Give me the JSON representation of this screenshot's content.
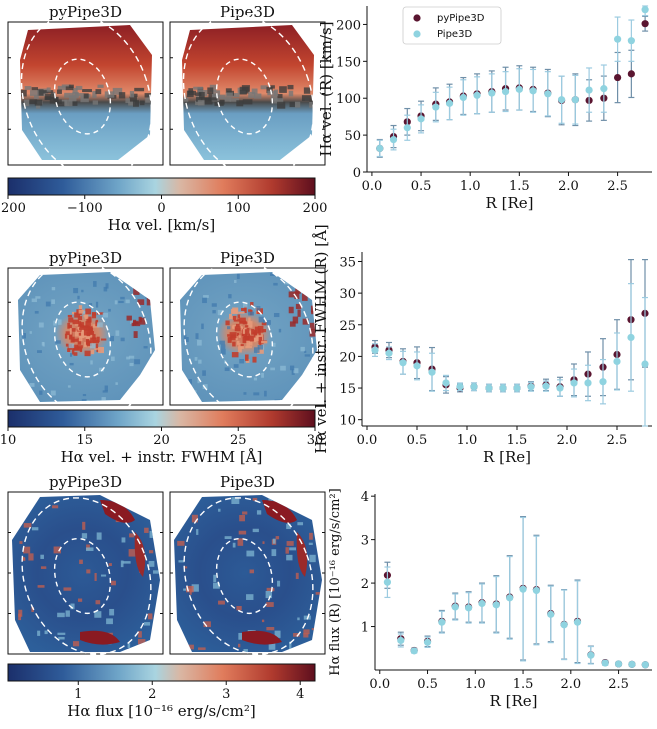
{
  "colors": {
    "pypipe3d": "#5a1530",
    "pipe3d": "#8fd3e0",
    "errbar": "#6f8fa8"
  },
  "legend": {
    "pypipe3d": "pyPipe3D",
    "pipe3d": "Pipe3D"
  },
  "rows": [
    {
      "map_titles": [
        "pyPipe3D",
        "Pipe3D"
      ],
      "map_kind": "velocity",
      "colorbar": {
        "ticks": [
          "−200",
          "−100",
          "0",
          "100",
          "200"
        ],
        "label": "Hα vel. [km/s]"
      }
    },
    {
      "map_titles": [
        "pyPipe3D",
        "Pipe3D"
      ],
      "map_kind": "fwhm",
      "colorbar": {
        "ticks": [
          "10",
          "15",
          "20",
          "25",
          "30"
        ],
        "label": "Hα vel. + instr. FWHM [Å]"
      }
    },
    {
      "map_titles": [
        "pyPipe3D",
        "Pipe3D"
      ],
      "map_kind": "flux",
      "colorbar": {
        "ticks": [
          "1",
          "2",
          "3",
          "4"
        ],
        "label": "Hα flux [10⁻¹⁶ erg/s/cm²]"
      }
    }
  ],
  "chart_data": [
    {
      "type": "scatter",
      "xlabel": "R [Re]",
      "ylabel": "Hα vel. (R) [km/s]",
      "xlim": [
        -0.05,
        2.85
      ],
      "ylim": [
        0,
        225
      ],
      "xticks": [
        "0.0",
        "0.5",
        "1.0",
        "1.5",
        "2.0",
        "2.5"
      ],
      "yticks": [
        "0",
        "50",
        "100",
        "150",
        "200"
      ],
      "x": [
        0.08,
        0.22,
        0.36,
        0.5,
        0.65,
        0.79,
        0.93,
        1.07,
        1.22,
        1.36,
        1.5,
        1.64,
        1.79,
        1.93,
        2.07,
        2.21,
        2.36,
        2.5,
        2.64,
        2.78
      ],
      "series": [
        {
          "name": "pyPipe3D",
          "values": [
            32,
            48,
            68,
            76,
            92,
            95,
            103,
            106,
            109,
            113,
            114,
            112,
            107,
            97,
            98,
            97,
            100,
            128,
            133,
            201
          ],
          "err": [
            12,
            15,
            18,
            20,
            22,
            24,
            25,
            27,
            28,
            29,
            30,
            30,
            32,
            33,
            35,
            28,
            30,
            34,
            32,
            10
          ]
        },
        {
          "name": "Pipe3D",
          "values": [
            32,
            44,
            60,
            72,
            88,
            93,
            101,
            104,
            107,
            109,
            112,
            110,
            106,
            98,
            98,
            111,
            113,
            180,
            178,
            220
          ],
          "err": [
            11,
            14,
            17,
            19,
            20,
            22,
            24,
            25,
            26,
            27,
            28,
            29,
            30,
            32,
            33,
            30,
            32,
            30,
            28,
            8
          ]
        }
      ]
    },
    {
      "type": "scatter",
      "xlabel": "R [Re]",
      "ylabel": "Hα vel. + instr. FWHM (R) [Å]",
      "xlim": [
        -0.05,
        2.85
      ],
      "ylim": [
        9,
        36.5
      ],
      "xticks": [
        "0.0",
        "0.5",
        "1.0",
        "1.5",
        "2.0",
        "2.5"
      ],
      "yticks": [
        "10",
        "15",
        "20",
        "25",
        "30",
        "35"
      ],
      "x": [
        0.08,
        0.22,
        0.36,
        0.5,
        0.65,
        0.79,
        0.93,
        1.07,
        1.22,
        1.36,
        1.5,
        1.64,
        1.79,
        1.93,
        2.07,
        2.21,
        2.36,
        2.5,
        2.64,
        2.78
      ],
      "series": [
        {
          "name": "pyPipe3D",
          "values": [
            21.5,
            21.0,
            19.2,
            19.0,
            18.0,
            15.5,
            15.0,
            15.2,
            15.0,
            15.0,
            15.0,
            15.3,
            15.5,
            15.2,
            16.3,
            17.2,
            18.3,
            20.3,
            25.8,
            26.8
          ],
          "err": [
            1.0,
            1.2,
            2.0,
            2.5,
            3.4,
            1.3,
            0.6,
            0.6,
            0.6,
            0.6,
            0.6,
            0.7,
            0.9,
            1.5,
            2.5,
            3.5,
            4.5,
            5.5,
            9.5,
            8.5
          ]
        },
        {
          "name": "Pipe3D",
          "values": [
            21.0,
            20.5,
            19.0,
            18.5,
            17.5,
            15.8,
            15.2,
            15.2,
            15.0,
            15.0,
            15.0,
            15.2,
            15.3,
            15.0,
            15.8,
            15.8,
            16.0,
            19.2,
            23.0,
            18.8
          ],
          "err": [
            1.0,
            1.0,
            1.8,
            2.2,
            3.0,
            1.2,
            0.6,
            0.6,
            0.6,
            0.6,
            0.6,
            0.7,
            0.8,
            1.3,
            2.2,
            2.8,
            3.5,
            4.5,
            8.5,
            10.5
          ]
        }
      ]
    },
    {
      "type": "scatter",
      "xlabel": "R [Re]",
      "ylabel": "Hα flux (R) [10⁻¹⁶ erg/s/cm²]",
      "xlim": [
        -0.05,
        2.85
      ],
      "ylim": [
        0,
        4.05
      ],
      "xticks": [
        "0.0",
        "0.5",
        "1.0",
        "1.5",
        "2.0",
        "2.5"
      ],
      "yticks": [
        "1",
        "2",
        "3",
        "4"
      ],
      "x": [
        0.08,
        0.22,
        0.36,
        0.5,
        0.65,
        0.79,
        0.93,
        1.07,
        1.22,
        1.36,
        1.5,
        1.64,
        1.79,
        1.93,
        2.07,
        2.21,
        2.36,
        2.5,
        2.64,
        2.78
      ],
      "series": [
        {
          "name": "pyPipe3D",
          "values": [
            2.18,
            0.72,
            0.45,
            0.66,
            1.12,
            1.47,
            1.45,
            1.55,
            1.52,
            1.68,
            1.88,
            1.85,
            1.3,
            1.05,
            1.12,
            0.35,
            0.17,
            0.14,
            0.13,
            0.12
          ],
          "err": [
            0.3,
            0.15,
            0.05,
            0.12,
            0.25,
            0.3,
            0.35,
            0.45,
            0.65,
            0.95,
            1.65,
            1.25,
            0.65,
            0.8,
            0.95,
            0.2,
            0.05,
            0.04,
            0.03,
            0.03
          ]
        },
        {
          "name": "Pipe3D",
          "values": [
            2.02,
            0.68,
            0.44,
            0.64,
            1.1,
            1.45,
            1.43,
            1.53,
            1.5,
            1.66,
            1.86,
            1.83,
            1.28,
            1.04,
            1.1,
            0.34,
            0.16,
            0.14,
            0.13,
            0.12
          ],
          "err": [
            0.35,
            0.15,
            0.05,
            0.12,
            0.25,
            0.3,
            0.35,
            0.45,
            0.65,
            0.95,
            1.65,
            1.25,
            0.65,
            0.8,
            0.95,
            0.2,
            0.05,
            0.04,
            0.03,
            0.03
          ]
        }
      ]
    }
  ]
}
